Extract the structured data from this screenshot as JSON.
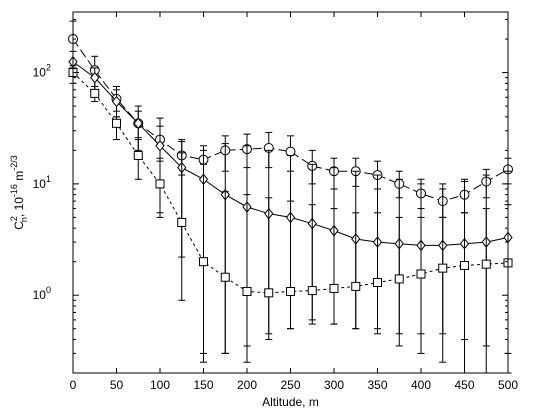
{
  "chart_data": {
    "type": "line",
    "xlabel": "Altitude, m",
    "ylabel": {
      "base": "C",
      "sup": "2",
      "sub": "n",
      "rest": ", 10",
      "exp": "-16",
      "unit": " m",
      "unit_exp": "-2/3"
    },
    "x_ticks": [
      0,
      50,
      100,
      150,
      200,
      250,
      300,
      350,
      400,
      450,
      500
    ],
    "x_tick_labels": [
      "0",
      "50",
      "100",
      "150",
      "200",
      "250",
      "300",
      "350",
      "400",
      "450",
      "500"
    ],
    "xlim": [
      0,
      500
    ],
    "y_scale": "log",
    "ylim": [
      0.2,
      350
    ],
    "y_ticks": [
      {
        "value": 1,
        "base": "10",
        "exp": "0"
      },
      {
        "value": 10,
        "base": "10",
        "exp": "1"
      },
      {
        "value": 100,
        "base": "10",
        "exp": "2"
      }
    ],
    "grid": false,
    "legend": "none",
    "x": [
      0,
      25,
      50,
      75,
      100,
      125,
      150,
      175,
      200,
      225,
      250,
      275,
      300,
      325,
      350,
      375,
      400,
      425,
      450,
      475,
      500
    ],
    "series": [
      {
        "marker": "circle",
        "line": "long-dash",
        "values": [
          200,
          105,
          58,
          35,
          25,
          18,
          16.5,
          20,
          20.5,
          21,
          19.5,
          14.5,
          13,
          13,
          12,
          10,
          8.2,
          7,
          8,
          10.5,
          13.5
        ],
        "err_low": [
          110,
          75,
          40,
          26,
          17,
          12,
          11,
          13,
          14,
          14,
          13,
          10,
          9,
          9.5,
          9,
          7.5,
          6,
          5,
          5.5,
          7.5,
          10
        ],
        "err_high": [
          290,
          140,
          75,
          45,
          33,
          24,
          22,
          27,
          28,
          29,
          27,
          20,
          17,
          17,
          16,
          13,
          11,
          9,
          10.5,
          13.5,
          17
        ]
      },
      {
        "marker": "diamond",
        "line": "solid",
        "values": [
          125,
          90,
          55,
          35,
          22,
          14,
          11,
          8,
          6.2,
          5.4,
          5,
          4.4,
          3.8,
          3.2,
          3.0,
          2.9,
          2.8,
          2.8,
          2.9,
          3.0,
          3.3
        ],
        "err_low": [
          95,
          70,
          40,
          20,
          5,
          2.2,
          0.3,
          0.3,
          0.25,
          0.4,
          0.5,
          0.6,
          0.55,
          0.5,
          0.45,
          0.35,
          0.3,
          0.25,
          0.2,
          0.2,
          0.2
        ],
        "err_high": [
          155,
          110,
          70,
          50,
          39,
          25,
          20,
          23,
          22,
          20,
          18,
          15,
          14,
          13,
          12,
          11,
          10,
          10,
          11,
          12,
          13
        ]
      },
      {
        "marker": "square",
        "line": "short-dash",
        "values": [
          100,
          65,
          35,
          18,
          10,
          4.5,
          2.0,
          1.45,
          1.08,
          1.05,
          1.08,
          1.1,
          1.15,
          1.2,
          1.3,
          1.4,
          1.55,
          1.75,
          1.85,
          1.9,
          1.95
        ],
        "err_low": [
          80,
          55,
          25,
          11,
          5.5,
          0.9,
          0.25,
          0.3,
          0.35,
          0.45,
          0.5,
          0.55,
          0.55,
          0.5,
          0.5,
          0.45,
          0.45,
          0.45,
          0.4,
          0.35,
          0.3
        ],
        "err_high": [
          115,
          75,
          45,
          25,
          16,
          19,
          15,
          8.5,
          8,
          7.5,
          7,
          6.5,
          6,
          5.5,
          5.5,
          5,
          5,
          5,
          5.5,
          6,
          6.5
        ]
      }
    ]
  }
}
